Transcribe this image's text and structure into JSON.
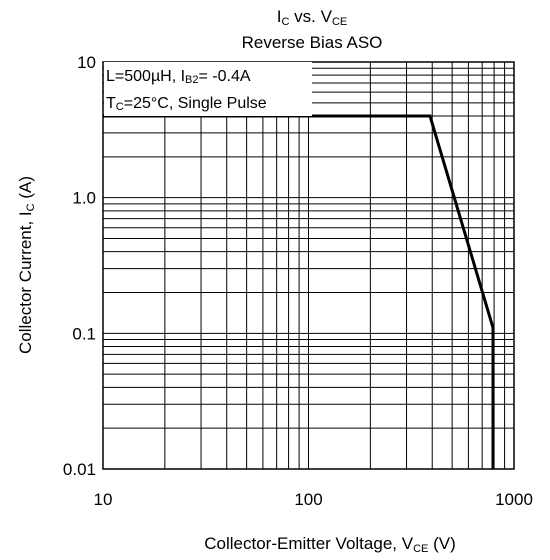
{
  "chart_data": {
    "type": "line",
    "title_line1": {
      "a": "I",
      "a_sub": "C",
      "mid": " vs. V",
      "b_sub": "CE"
    },
    "title_line2": "Reverse Bias ASO",
    "annotation_line1": {
      "pre": "L=500µH, I",
      "sub": "B2",
      "post": "= -0.4A"
    },
    "annotation_line2": {
      "pre": "T",
      "sub": "C",
      "post": "=25°C, Single Pulse"
    },
    "xlabel": {
      "pre": "Collector-Emitter Voltage,  V",
      "sub": "CE",
      "post": " (V)"
    },
    "ylabel": {
      "pre": "Collector Current, I",
      "sub": "C",
      "post": " (A)"
    },
    "x_scale": "log",
    "y_scale": "log",
    "xlim": [
      10,
      1000
    ],
    "ylim": [
      0.01,
      10
    ],
    "x_ticks": [
      {
        "value": 10,
        "label": "10"
      },
      {
        "value": 100,
        "label": "100"
      },
      {
        "value": 1000,
        "label": "1000"
      }
    ],
    "y_ticks": [
      {
        "value": 0.01,
        "label": "0.01"
      },
      {
        "value": 0.1,
        "label": "0.1"
      },
      {
        "value": 1,
        "label": "1.0"
      },
      {
        "value": 10,
        "label": "10"
      }
    ],
    "grid": true,
    "series": [
      {
        "x": [
          10,
          390,
          790,
          790
        ],
        "y": [
          4,
          4,
          0.11,
          0.01
        ]
      }
    ]
  }
}
